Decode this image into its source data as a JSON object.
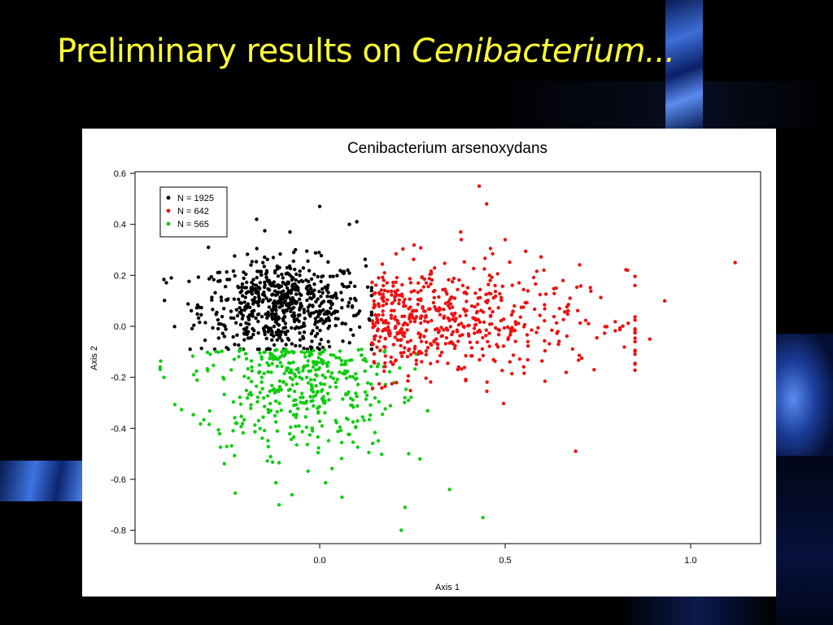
{
  "slide": {
    "title_plain": "Preliminary results on ",
    "title_italic": "Cenibacterium..."
  },
  "chart_data": {
    "type": "scatter",
    "title": "Cenibacterium arsenoxydans",
    "xlabel": "Axis 1",
    "ylabel": "Axis 2",
    "xlim": [
      -0.5,
      1.2
    ],
    "ylim": [
      -0.85,
      0.6
    ],
    "x_ticks": [
      0.0,
      0.5,
      1.0
    ],
    "x_tick_labels": [
      "0.0",
      "0.5",
      "1.0"
    ],
    "y_ticks": [
      0.6,
      0.4,
      0.2,
      0.0,
      -0.2,
      -0.4,
      -0.6,
      -0.8
    ],
    "y_tick_labels": [
      "0.6",
      "0.4",
      "0.2",
      "0.0",
      "-0.2",
      "-0.4",
      "-0.6",
      "-0.8"
    ],
    "grid": false,
    "legend_position": "top-left",
    "series": [
      {
        "name": "N = 1925",
        "color": "#000000",
        "count": 1925,
        "region": "x -0.42 to 0.14, y -0.09 to 0.47"
      },
      {
        "name": "N = 642",
        "color": "#ee1111",
        "count": 642,
        "region": "x 0.12 to 1.12, y -0.50 to 0.55"
      },
      {
        "name": "N = 565",
        "color": "#11cc11",
        "count": 565,
        "region": "x -0.43 to 0.45, y -0.80 to -0.08"
      }
    ],
    "highlighted_points": {
      "black": [
        [
          -0.3,
          0.31
        ],
        [
          -0.17,
          0.42
        ],
        [
          0.0,
          0.47
        ],
        [
          0.1,
          0.41
        ],
        [
          -0.4,
          0.19
        ],
        [
          -0.08,
          0.37
        ],
        [
          0.08,
          0.4
        ]
      ],
      "red": [
        [
          0.43,
          0.55
        ],
        [
          0.45,
          0.48
        ],
        [
          1.12,
          0.25
        ],
        [
          0.93,
          0.1
        ],
        [
          0.89,
          -0.05
        ],
        [
          0.69,
          -0.49
        ],
        [
          0.83,
          0.22
        ],
        [
          0.38,
          0.37
        ],
        [
          0.5,
          0.34
        ]
      ],
      "green": [
        [
          0.44,
          -0.75
        ],
        [
          0.22,
          -0.8
        ],
        [
          0.23,
          -0.71
        ],
        [
          0.35,
          -0.64
        ],
        [
          0.06,
          -0.67
        ],
        [
          -0.42,
          -0.2
        ],
        [
          -0.43,
          -0.16
        ],
        [
          0.27,
          -0.52
        ],
        [
          0.24,
          -0.5
        ]
      ]
    }
  }
}
